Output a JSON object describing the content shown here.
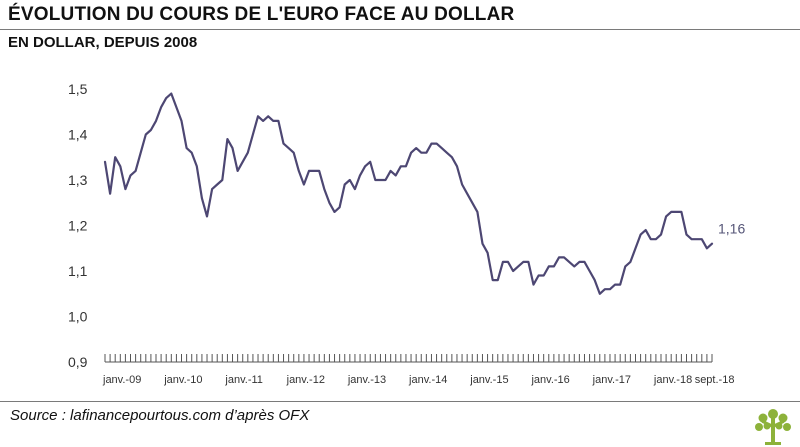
{
  "header": {
    "title": "ÉVOLUTION DU COURS DE L'EURO FACE AU DOLLAR",
    "subtitle": "EN DOLLAR, DEPUIS 2008"
  },
  "footer": {
    "source": "Source : lafinancepourtous.com d’après OFX"
  },
  "colors": {
    "line": "#4d4773",
    "axis": "#555555",
    "logo": "#8db23a"
  },
  "chart_data": {
    "type": "line",
    "title": "ÉVOLUTION DU COURS DE L'EURO FACE AU DOLLAR",
    "subtitle": "EN DOLLAR, DEPUIS 2008",
    "xlabel": "",
    "ylabel": "",
    "ylim": [
      0.9,
      1.5
    ],
    "yticks": [
      0.9,
      1.0,
      1.1,
      1.2,
      1.3,
      1.4,
      1.5
    ],
    "ytick_labels": [
      "0,9",
      "1,0",
      "1,1",
      "1,2",
      "1,3",
      "1,4",
      "1,5"
    ],
    "x_tick_labels": [
      "janv.-09",
      "janv.-10",
      "janv.-11",
      "janv.-12",
      "janv.-13",
      "janv.-14",
      "janv.-15",
      "janv.-16",
      "janv.-17",
      "janv.-18",
      "sept.-18"
    ],
    "x_tick_months": [
      0,
      12,
      24,
      36,
      48,
      60,
      72,
      84,
      96,
      108,
      116
    ],
    "x_range_months": [
      0,
      119
    ],
    "grid": false,
    "end_label": "1,16",
    "series": [
      {
        "values": [
          1.34,
          1.27,
          1.35,
          1.33,
          1.28,
          1.31,
          1.32,
          1.36,
          1.4,
          1.41,
          1.43,
          1.46,
          1.48,
          1.49,
          1.46,
          1.43,
          1.37,
          1.36,
          1.33,
          1.26,
          1.22,
          1.28,
          1.29,
          1.3,
          1.39,
          1.37,
          1.32,
          1.34,
          1.36,
          1.4,
          1.44,
          1.43,
          1.44,
          1.43,
          1.43,
          1.38,
          1.37,
          1.36,
          1.32,
          1.29,
          1.32,
          1.32,
          1.32,
          1.28,
          1.25,
          1.23,
          1.24,
          1.29,
          1.3,
          1.28,
          1.31,
          1.33,
          1.34,
          1.3,
          1.3,
          1.3,
          1.32,
          1.31,
          1.33,
          1.33,
          1.36,
          1.37,
          1.36,
          1.36,
          1.38,
          1.38,
          1.37,
          1.36,
          1.35,
          1.33,
          1.29,
          1.27,
          1.25,
          1.23,
          1.16,
          1.14,
          1.08,
          1.08,
          1.12,
          1.12,
          1.1,
          1.11,
          1.12,
          1.12,
          1.07,
          1.09,
          1.09,
          1.11,
          1.11,
          1.13,
          1.13,
          1.12,
          1.11,
          1.12,
          1.12,
          1.1,
          1.08,
          1.05,
          1.06,
          1.06,
          1.07,
          1.07,
          1.11,
          1.12,
          1.15,
          1.18,
          1.19,
          1.17,
          1.17,
          1.18,
          1.22,
          1.23,
          1.23,
          1.23,
          1.18,
          1.17,
          1.17,
          1.17,
          1.15,
          1.16
        ]
      }
    ]
  }
}
